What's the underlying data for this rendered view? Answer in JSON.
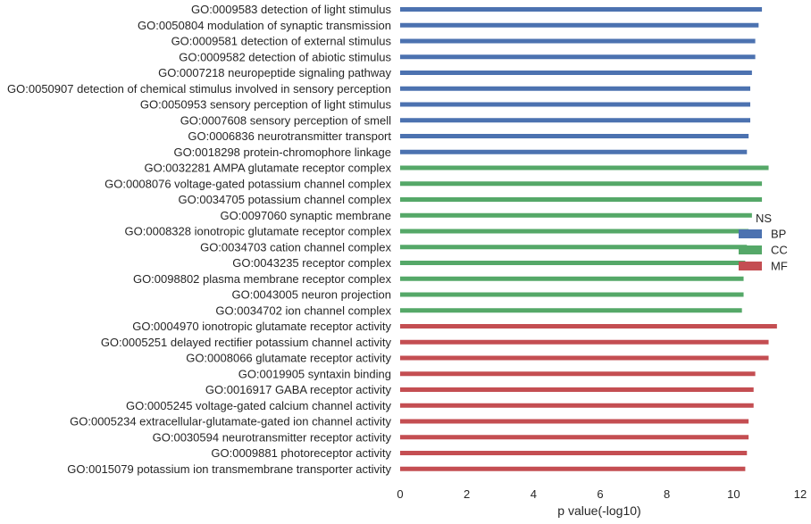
{
  "chart_data": {
    "type": "bar",
    "orientation": "horizontal",
    "xlabel": "p value(-log10)",
    "xlim": [
      0,
      12
    ],
    "xticks": [
      0,
      2,
      4,
      6,
      8,
      10,
      12
    ],
    "grid": false,
    "legend": {
      "title": "NS",
      "placement": "center-right",
      "entries": [
        {
          "name": "BP",
          "color": "#4c72b0"
        },
        {
          "name": "CC",
          "color": "#55a868"
        },
        {
          "name": "MF",
          "color": "#c44e52"
        }
      ]
    },
    "bars": [
      {
        "label": "GO:0009583 detection of light stimulus",
        "value": 10.85,
        "group": "BP"
      },
      {
        "label": "GO:0050804 modulation of synaptic transmission",
        "value": 10.75,
        "group": "BP"
      },
      {
        "label": "GO:0009581 detection of external stimulus",
        "value": 10.65,
        "group": "BP"
      },
      {
        "label": "GO:0009582 detection of abiotic stimulus",
        "value": 10.65,
        "group": "BP"
      },
      {
        "label": "GO:0007218 neuropeptide signaling pathway",
        "value": 10.55,
        "group": "BP"
      },
      {
        "label": "GO:0050907 detection of chemical stimulus involved in sensory perception",
        "value": 10.5,
        "group": "BP"
      },
      {
        "label": "GO:0050953 sensory perception of light stimulus",
        "value": 10.5,
        "group": "BP"
      },
      {
        "label": "GO:0007608 sensory perception of smell",
        "value": 10.5,
        "group": "BP"
      },
      {
        "label": "GO:0006836 neurotransmitter transport",
        "value": 10.45,
        "group": "BP"
      },
      {
        "label": "GO:0018298 protein-chromophore linkage",
        "value": 10.4,
        "group": "BP"
      },
      {
        "label": "GO:0032281 AMPA glutamate receptor complex",
        "value": 11.05,
        "group": "CC"
      },
      {
        "label": "GO:0008076 voltage-gated potassium channel complex",
        "value": 10.85,
        "group": "CC"
      },
      {
        "label": "GO:0034705 potassium channel complex",
        "value": 10.85,
        "group": "CC"
      },
      {
        "label": "GO:0097060 synaptic membrane",
        "value": 10.55,
        "group": "CC"
      },
      {
        "label": "GO:0008328 ionotropic glutamate receptor complex",
        "value": 10.45,
        "group": "CC"
      },
      {
        "label": "GO:0034703 cation channel complex",
        "value": 10.4,
        "group": "CC"
      },
      {
        "label": "GO:0043235 receptor complex",
        "value": 10.35,
        "group": "CC"
      },
      {
        "label": "GO:0098802 plasma membrane receptor complex",
        "value": 10.3,
        "group": "CC"
      },
      {
        "label": "GO:0043005 neuron projection",
        "value": 10.3,
        "group": "CC"
      },
      {
        "label": "GO:0034702 ion channel complex",
        "value": 10.25,
        "group": "CC"
      },
      {
        "label": "GO:0004970 ionotropic glutamate receptor activity",
        "value": 11.3,
        "group": "MF"
      },
      {
        "label": "GO:0005251 delayed rectifier potassium channel activity",
        "value": 11.05,
        "group": "MF"
      },
      {
        "label": "GO:0008066 glutamate receptor activity",
        "value": 11.05,
        "group": "MF"
      },
      {
        "label": "GO:0019905 syntaxin binding",
        "value": 10.65,
        "group": "MF"
      },
      {
        "label": "GO:0016917 GABA receptor activity",
        "value": 10.6,
        "group": "MF"
      },
      {
        "label": "GO:0005245 voltage-gated calcium channel activity",
        "value": 10.6,
        "group": "MF"
      },
      {
        "label": "GO:0005234 extracellular-glutamate-gated ion channel activity",
        "value": 10.45,
        "group": "MF"
      },
      {
        "label": "GO:0030594 neurotransmitter receptor activity",
        "value": 10.45,
        "group": "MF"
      },
      {
        "label": "GO:0009881 photoreceptor activity",
        "value": 10.4,
        "group": "MF"
      },
      {
        "label": "GO:0015079 potassium ion transmembrane transporter activity",
        "value": 10.35,
        "group": "MF"
      }
    ]
  }
}
